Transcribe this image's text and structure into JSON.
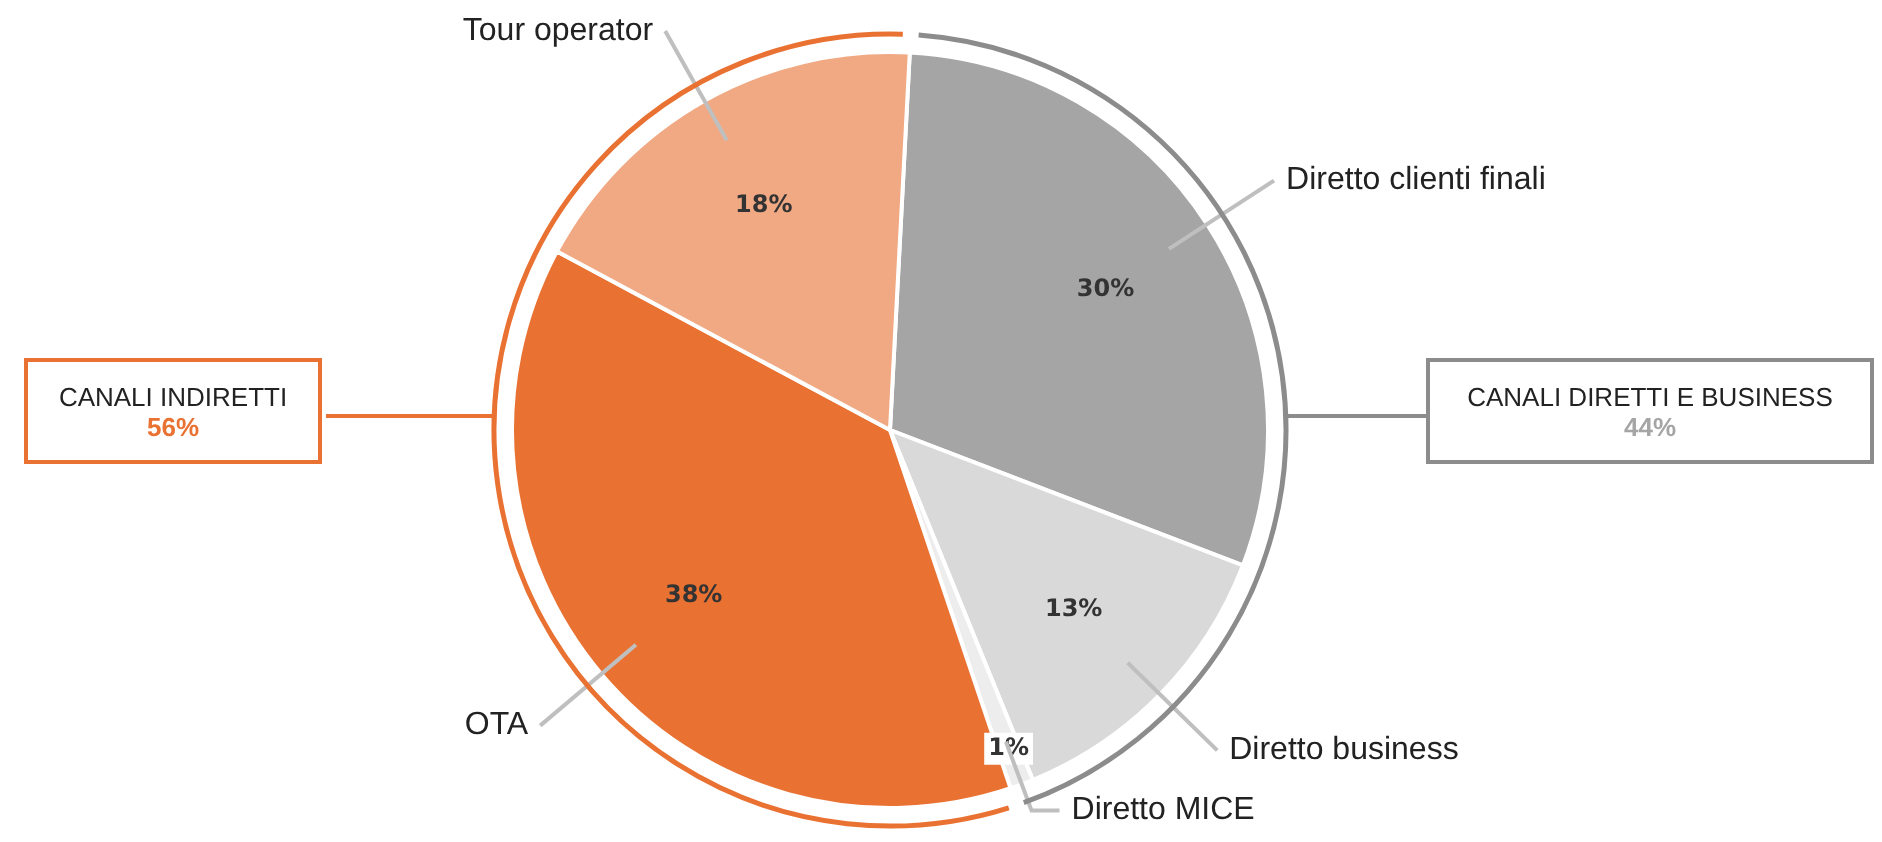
{
  "chart_data": {
    "type": "pie",
    "categories": [
      "Diretto clienti finali",
      "Diretto business",
      "Diretto MICE",
      "OTA",
      "Tour operator"
    ],
    "values": [
      30,
      13,
      1,
      38,
      18
    ],
    "value_labels": [
      "30%",
      "13%",
      "1%",
      "38%",
      "18%"
    ],
    "colors": [
      "#a5a5a5",
      "#d9d9d9",
      "#ededed",
      "#e97132",
      "#f1a983"
    ],
    "annotations": [
      "CANALI DIRETTI E BUSINESS",
      "44%",
      "CANALI INDIRETTI",
      "56%"
    ],
    "legend": false
  }
}
